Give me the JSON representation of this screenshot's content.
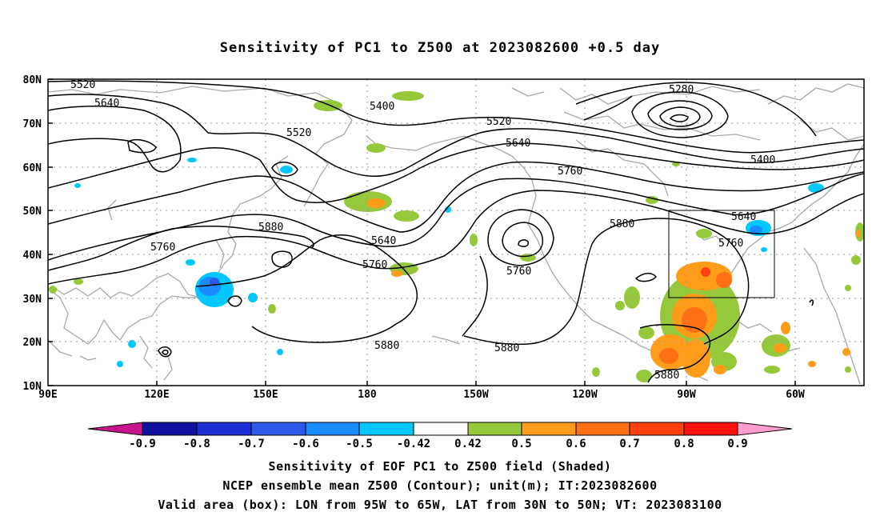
{
  "title": "Sensitivity of PC1 to Z500 at 2023082600 +0.5 day",
  "map": {
    "lat_labels": [
      "80N",
      "70N",
      "60N",
      "50N",
      "40N",
      "30N",
      "20N",
      "10N"
    ],
    "lon_labels": [
      "90E",
      "120E",
      "150E",
      "180",
      "150W",
      "120W",
      "90W",
      "60W"
    ],
    "contour_labels": [
      "5520",
      "5640",
      "5400",
      "5520",
      "5520",
      "5640",
      "5760",
      "5280",
      "5400",
      "5640",
      "5760",
      "5880",
      "5880",
      "5640",
      "5760",
      "5760",
      "5760",
      "5880",
      "5880",
      "5880"
    ],
    "box": {
      "lon_range": "95W to 65W",
      "lat_range": "30N to 50N"
    }
  },
  "colorbar": {
    "labels": [
      "-0.9",
      "-0.8",
      "-0.7",
      "-0.6",
      "-0.5",
      "-0.42",
      "0.42",
      "0.5",
      "0.6",
      "0.7",
      "0.8",
      "0.9"
    ],
    "colors": [
      "#1010a0",
      "#1d2fd4",
      "#2d5ae8",
      "#1a8cff",
      "#00c8ff",
      "#ffffff",
      "#96c83c",
      "#ff9c1a",
      "#ff7014",
      "#ff4010",
      "#ff1010"
    ],
    "low_end_color": "#c8148c",
    "high_end_color": "#ff9cd2"
  },
  "footer": {
    "line1": "Sensitivity of EOF PC1 to Z500 field (Shaded)",
    "line2": "NCEP ensemble mean Z500 (Contour); unit(m); IT:2023082600",
    "line3": "Valid area (box): LON from 95W to 65W, LAT from 30N to 50N; VT: 2023083100"
  }
}
